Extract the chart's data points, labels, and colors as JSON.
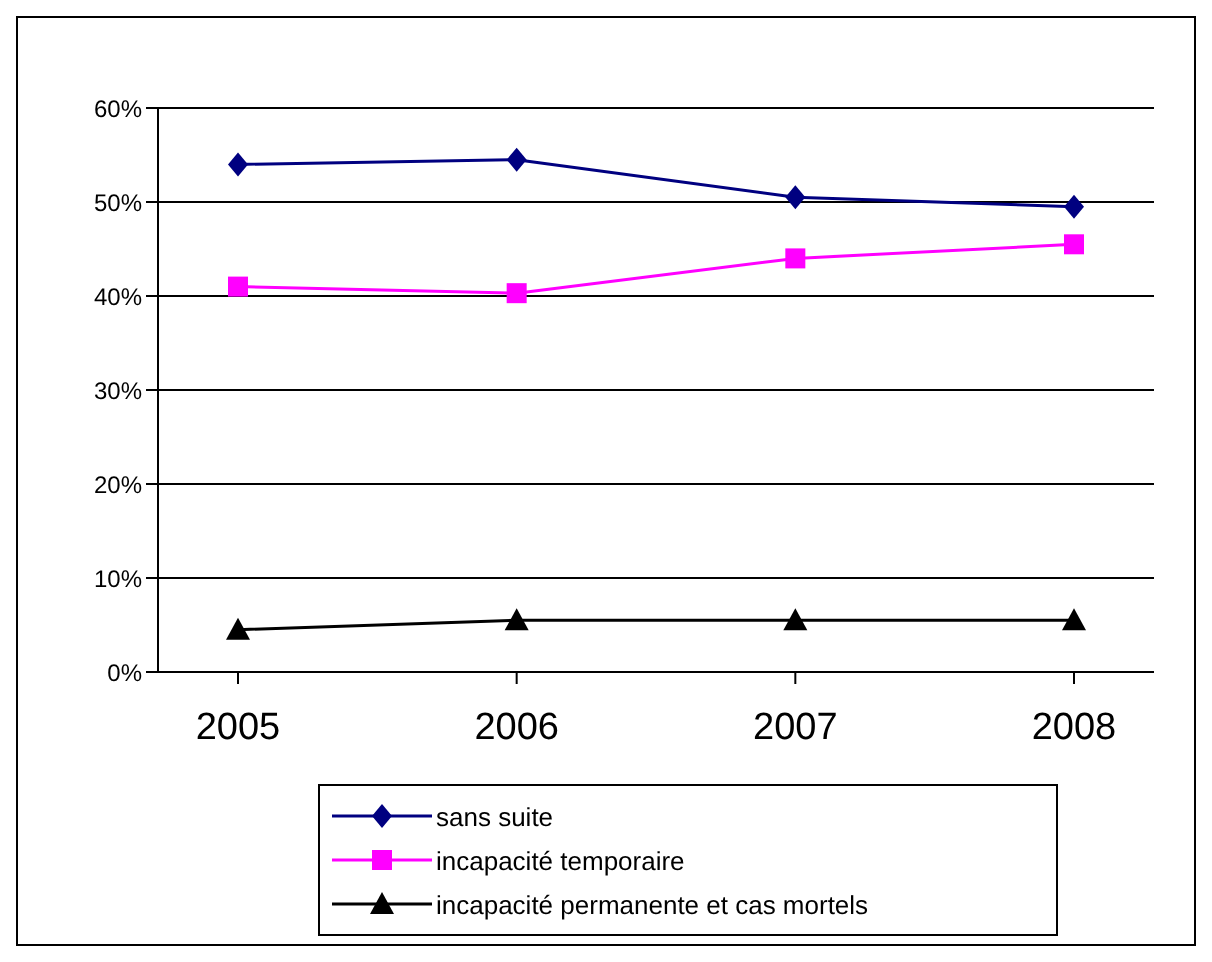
{
  "chart_data": {
    "type": "line",
    "categories": [
      "2005",
      "2006",
      "2007",
      "2008"
    ],
    "series": [
      {
        "name": "sans suite",
        "color": "#000080",
        "marker": "diamond",
        "values": [
          54,
          54.5,
          50.5,
          49.5
        ]
      },
      {
        "name": "incapacité temporaire",
        "color": "#ff00ff",
        "marker": "square",
        "values": [
          41,
          40.3,
          44,
          45.5
        ]
      },
      {
        "name": "incapacité permanente et cas mortels",
        "color": "#000000",
        "marker": "triangle",
        "values": [
          4.5,
          5.5,
          5.5,
          5.5
        ]
      }
    ],
    "ylim": [
      0,
      60
    ],
    "yticks": [
      {
        "value": 0,
        "label": "0%"
      },
      {
        "value": 10,
        "label": "10%"
      },
      {
        "value": 20,
        "label": "20%"
      },
      {
        "value": 30,
        "label": "30%"
      },
      {
        "value": 40,
        "label": "40%"
      },
      {
        "value": 50,
        "label": "50%"
      },
      {
        "value": 60,
        "label": "60%"
      }
    ],
    "grid": "y",
    "legend": "bottom"
  }
}
